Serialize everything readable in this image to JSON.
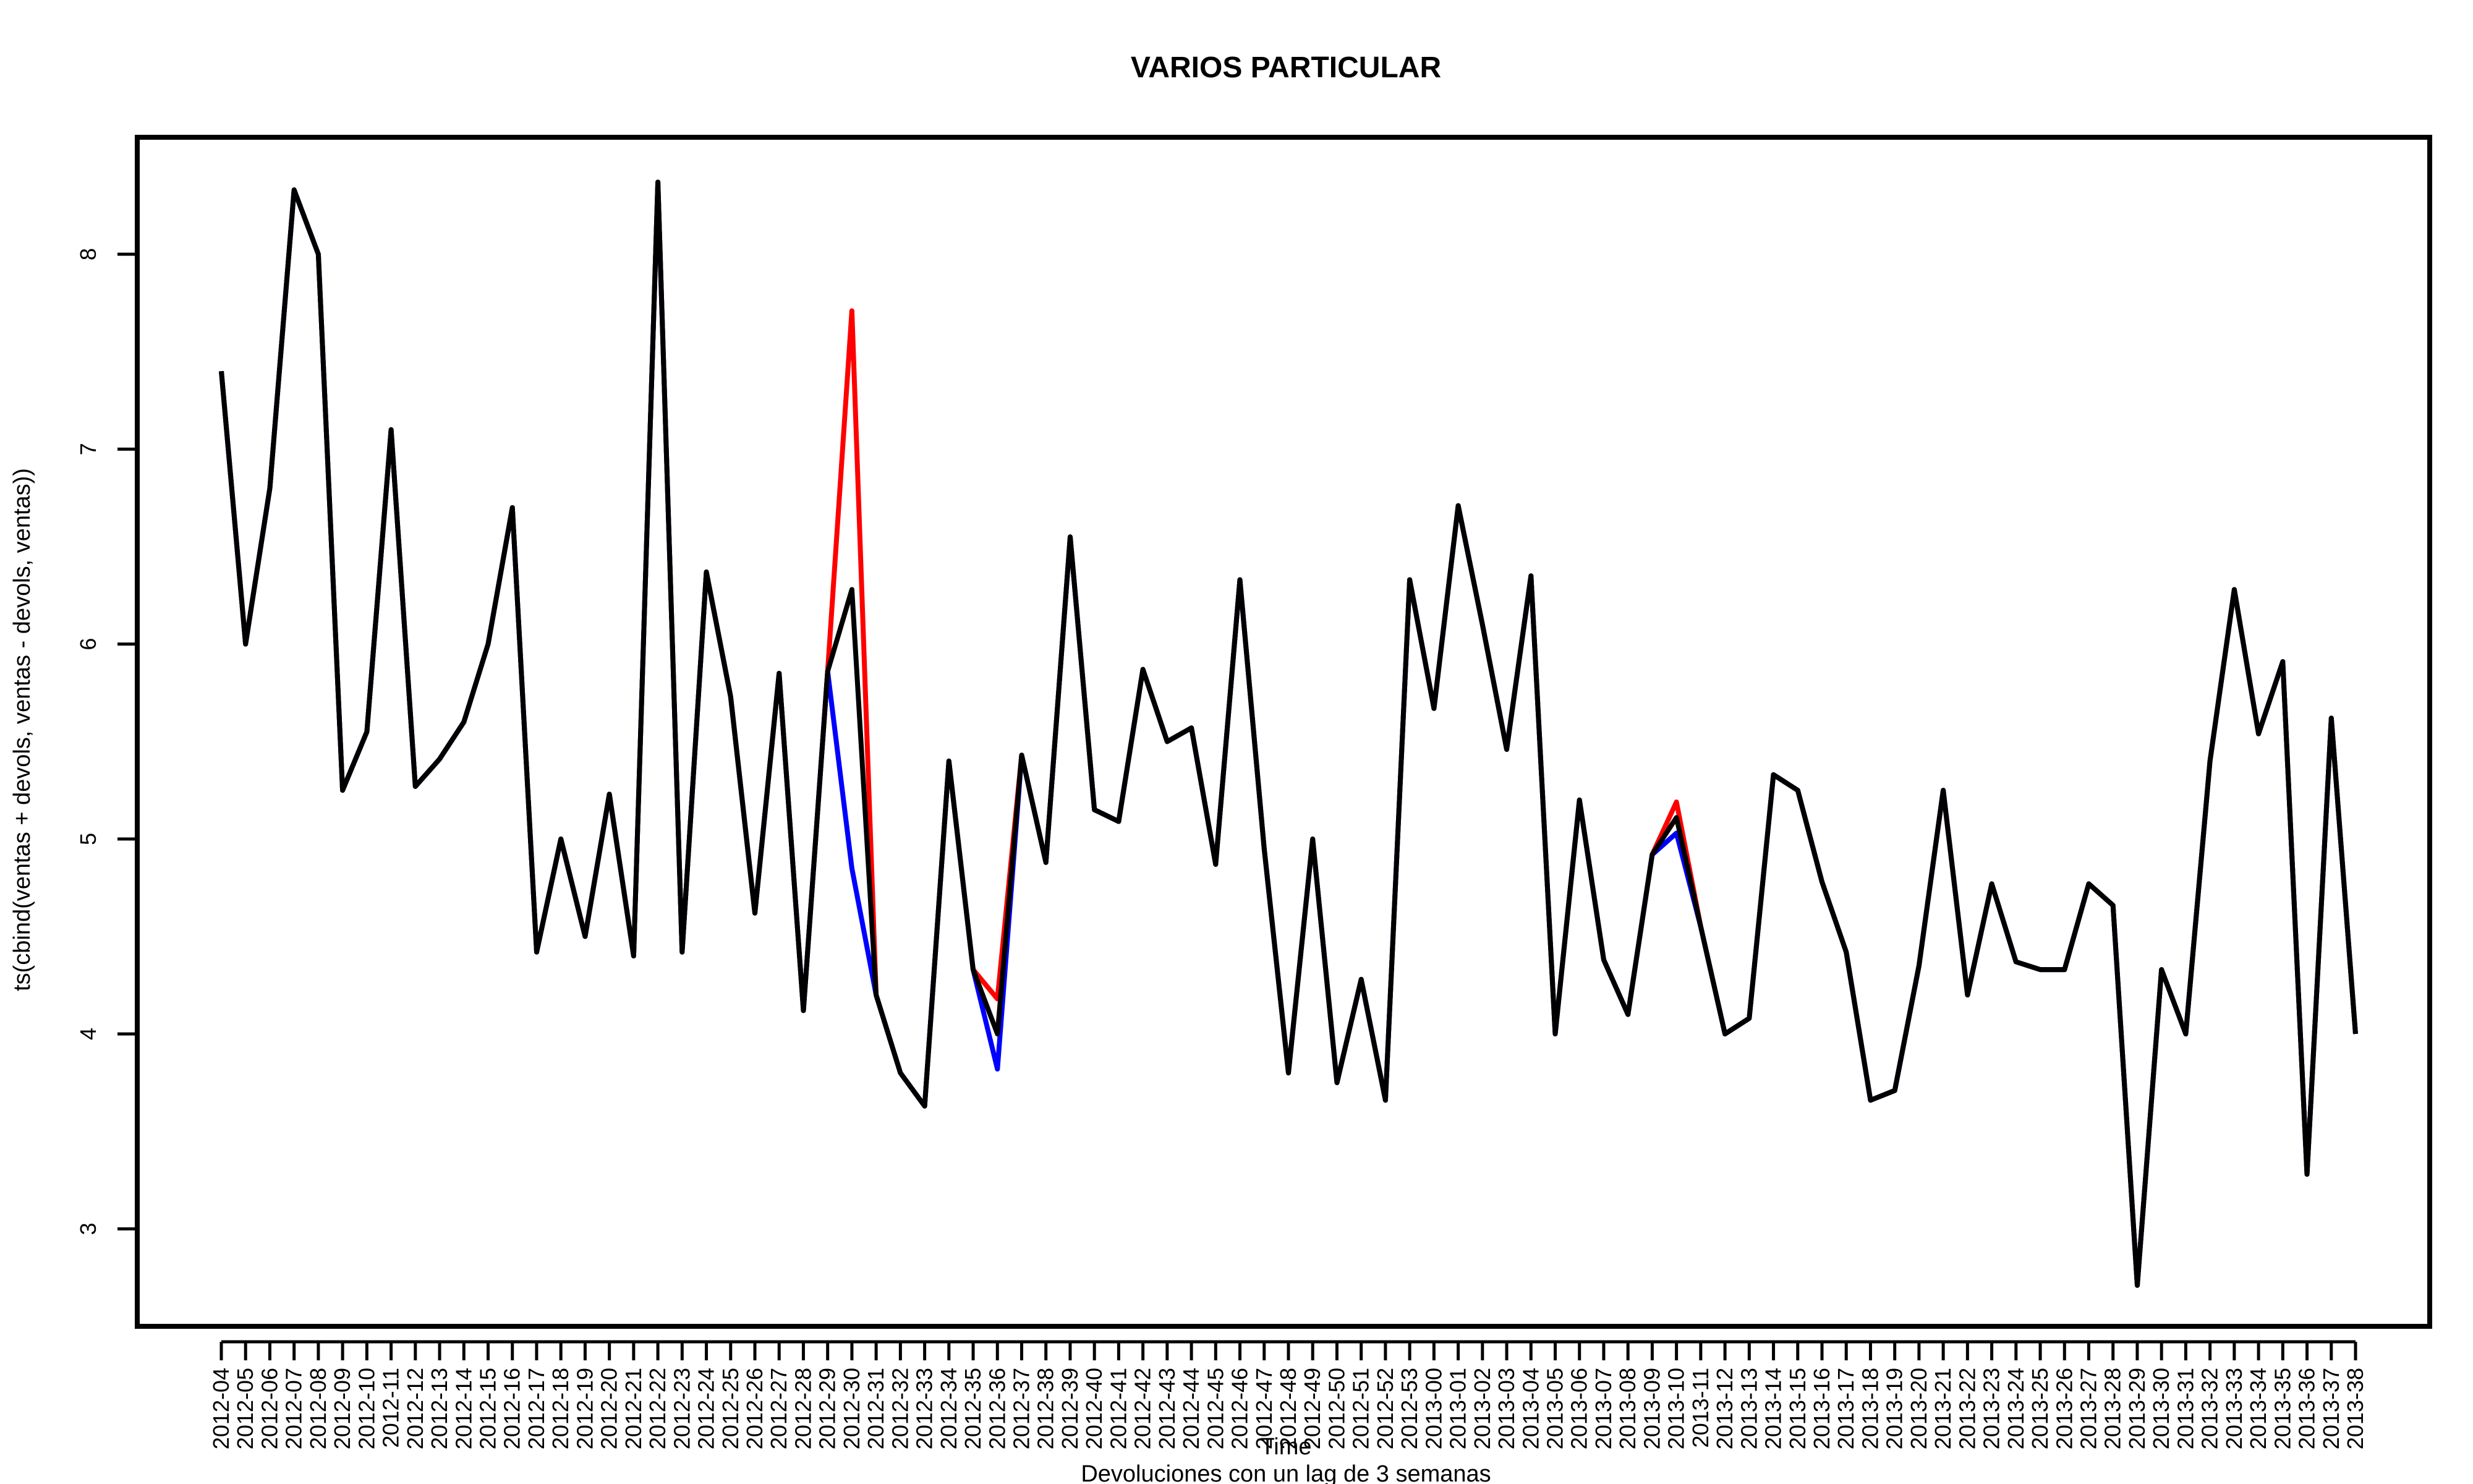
{
  "chart_data": {
    "type": "line",
    "title": "VARIOS PARTICULAR",
    "xlabel": "Time",
    "subtitle": "Devoluciones con un lag de 3 semanas",
    "ylabel": "ts(cbind(ventas + devols, ventas - devols, ventas))",
    "ylim": [
      2.5,
      8.6
    ],
    "yticks": [
      3,
      4,
      5,
      6,
      7,
      8
    ],
    "grid": false,
    "categories": [
      "2012-04",
      "2012-05",
      "2012-06",
      "2012-07",
      "2012-08",
      "2012-09",
      "2012-10",
      "2012-11",
      "2012-12",
      "2012-13",
      "2012-14",
      "2012-15",
      "2012-16",
      "2012-17",
      "2012-18",
      "2012-19",
      "2012-20",
      "2012-21",
      "2012-22",
      "2012-23",
      "2012-24",
      "2012-25",
      "2012-26",
      "2012-27",
      "2012-28",
      "2012-29",
      "2012-30",
      "2012-31",
      "2012-32",
      "2012-33",
      "2012-34",
      "2012-35",
      "2012-36",
      "2012-37",
      "2012-38",
      "2012-39",
      "2012-40",
      "2012-41",
      "2012-42",
      "2012-43",
      "2012-44",
      "2012-45",
      "2012-46",
      "2012-47",
      "2012-48",
      "2012-49",
      "2012-50",
      "2012-51",
      "2012-52",
      "2012-53",
      "2013-00",
      "2013-01",
      "2013-02",
      "2013-03",
      "2013-04",
      "2013-05",
      "2013-06",
      "2013-07",
      "2013-08",
      "2013-09",
      "2013-10",
      "2013-11",
      "2013-12",
      "2013-13",
      "2013-14",
      "2013-15",
      "2013-16",
      "2013-17",
      "2013-18",
      "2013-19",
      "2013-20",
      "2013-21",
      "2013-22",
      "2013-23",
      "2013-24",
      "2013-25",
      "2013-26",
      "2013-27",
      "2013-28",
      "2013-29",
      "2013-30",
      "2013-31",
      "2013-32",
      "2013-33",
      "2013-34",
      "2013-35",
      "2013-36",
      "2013-37",
      "2013-38"
    ],
    "series": [
      {
        "color": "#ff0000",
        "values": [
          7.4,
          6.0,
          6.8,
          8.33,
          8.0,
          5.25,
          5.55,
          7.1,
          5.27,
          5.41,
          5.6,
          6.0,
          6.7,
          4.42,
          5.0,
          4.5,
          5.23,
          4.4,
          8.37,
          4.42,
          6.37,
          5.73,
          4.62,
          5.85,
          4.12,
          5.86,
          7.71,
          4.2,
          3.8,
          3.63,
          5.4,
          4.33,
          4.18,
          5.43,
          4.88,
          6.55,
          5.15,
          5.09,
          5.87,
          5.5,
          5.57,
          4.87,
          6.33,
          4.95,
          3.8,
          5.0,
          3.75,
          4.28,
          3.66,
          6.33,
          5.67,
          6.71,
          6.1,
          5.46,
          6.35,
          4.0,
          5.2,
          4.38,
          4.1,
          4.92,
          5.19,
          4.55,
          4.0,
          4.08,
          5.33,
          5.25,
          4.78,
          4.42,
          3.66,
          3.71,
          4.35,
          5.25,
          4.2,
          4.77,
          4.37,
          4.33,
          4.33,
          4.77,
          4.66,
          2.71,
          4.33,
          4.0,
          5.4,
          6.28,
          5.54,
          5.91,
          3.28,
          5.62,
          4.0
        ]
      },
      {
        "color": "#0000ff",
        "values": [
          7.4,
          6.0,
          6.8,
          8.33,
          8.0,
          5.25,
          5.55,
          7.1,
          5.27,
          5.41,
          5.6,
          6.0,
          6.7,
          4.42,
          5.0,
          4.5,
          5.23,
          4.4,
          8.37,
          4.42,
          6.37,
          5.73,
          4.62,
          5.85,
          4.12,
          5.86,
          4.85,
          4.2,
          3.8,
          3.63,
          5.4,
          4.33,
          3.82,
          5.43,
          4.88,
          6.55,
          5.15,
          5.09,
          5.87,
          5.5,
          5.57,
          4.87,
          6.33,
          4.95,
          3.8,
          5.0,
          3.75,
          4.28,
          3.66,
          6.33,
          5.67,
          6.71,
          6.1,
          5.46,
          6.35,
          4.0,
          5.2,
          4.38,
          4.1,
          4.92,
          5.03,
          4.55,
          4.0,
          4.08,
          5.33,
          5.25,
          4.78,
          4.42,
          3.66,
          3.71,
          4.35,
          5.25,
          4.2,
          4.77,
          4.37,
          4.33,
          4.33,
          4.77,
          4.66,
          2.71,
          4.33,
          4.0,
          5.4,
          6.28,
          5.54,
          5.91,
          3.28,
          5.62,
          4.0
        ]
      },
      {
        "color": "#000000",
        "values": [
          7.4,
          6.0,
          6.8,
          8.33,
          8.0,
          5.25,
          5.55,
          7.1,
          5.27,
          5.41,
          5.6,
          6.0,
          6.7,
          4.42,
          5.0,
          4.5,
          5.23,
          4.4,
          8.37,
          4.42,
          6.37,
          5.73,
          4.62,
          5.85,
          4.12,
          5.86,
          6.28,
          4.2,
          3.8,
          3.63,
          5.4,
          4.33,
          4.0,
          5.43,
          4.88,
          6.55,
          5.15,
          5.09,
          5.87,
          5.5,
          5.57,
          4.87,
          6.33,
          4.95,
          3.8,
          5.0,
          3.75,
          4.28,
          3.66,
          6.33,
          5.67,
          6.71,
          6.1,
          5.46,
          6.35,
          4.0,
          5.2,
          4.38,
          4.1,
          4.92,
          5.11,
          4.55,
          4.0,
          4.08,
          5.33,
          5.25,
          4.78,
          4.42,
          3.66,
          3.71,
          4.35,
          5.25,
          4.2,
          4.77,
          4.37,
          4.33,
          4.33,
          4.77,
          4.66,
          2.71,
          4.33,
          4.0,
          5.4,
          6.28,
          5.54,
          5.91,
          3.28,
          5.62,
          4.0
        ]
      }
    ]
  }
}
